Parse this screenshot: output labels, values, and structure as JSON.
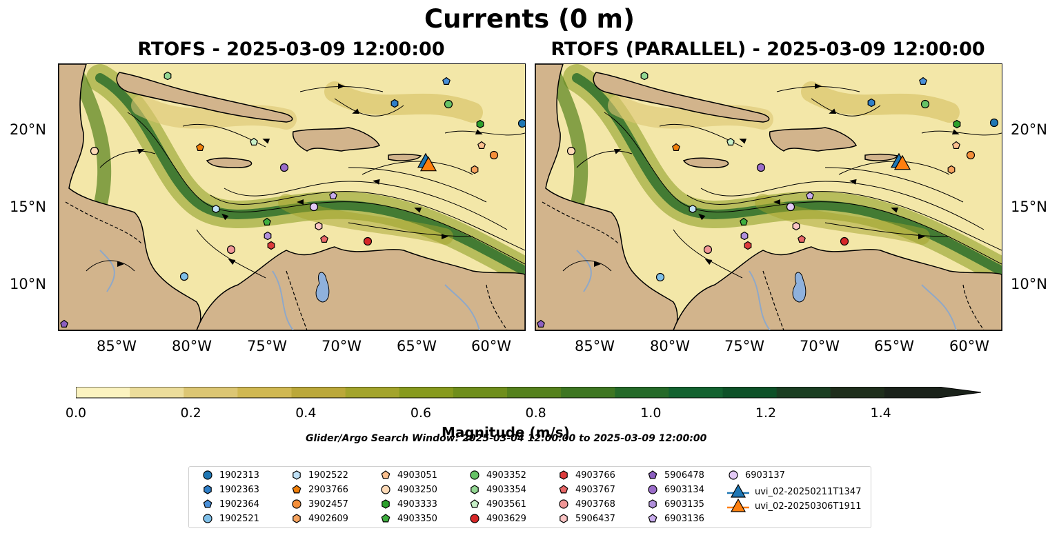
{
  "figure": {
    "suptitle": "Currents (0 m)",
    "panels": [
      {
        "title": "RTOFS - 2025-03-09 12:00:00"
      },
      {
        "title": "RTOFS (PARALLEL) - 2025-03-09 12:00:00"
      }
    ],
    "lon_ticks": [
      "85°W",
      "80°W",
      "75°W",
      "70°W",
      "65°W",
      "60°W"
    ],
    "lat_ticks": [
      "20°N",
      "15°N",
      "10°N"
    ],
    "colors": {
      "land": "#d2b48c",
      "lake": "#8fb1dc",
      "river": "#8fa8c8",
      "stream": "#000000"
    }
  },
  "colorbar": {
    "label": "Magnitude (m/s)",
    "ticks": [
      "0.0",
      "0.2",
      "0.4",
      "0.6",
      "0.8",
      "1.0",
      "1.2",
      "1.4"
    ],
    "colors": [
      "#fbf3c0",
      "#ecdd9b",
      "#dcc673",
      "#d0b852",
      "#bba83a",
      "#a3a42c",
      "#879a1e",
      "#6f8e1c",
      "#55811d",
      "#3e7622",
      "#256a29",
      "#136230",
      "#0d5128",
      "#1a3e22",
      "#1f2e1c",
      "#1a221a"
    ]
  },
  "search_window": "Glider/Argo Search Window: 2025-03-04 12:00:00 to 2025-03-09 12:00:00",
  "legend": [
    {
      "id": "1902313",
      "marker": "circle",
      "color": "#1f77b4"
    },
    {
      "id": "1902363",
      "marker": "hexagon",
      "color": "#2f7fc8"
    },
    {
      "id": "1902364",
      "marker": "pentagon",
      "color": "#4a90d9"
    },
    {
      "id": "1902521",
      "marker": "circle",
      "color": "#7fbfe8"
    },
    {
      "id": "1902522",
      "marker": "hexagon",
      "color": "#bfe1f7"
    },
    {
      "id": "2903766",
      "marker": "pentagon",
      "color": "#f07f0a"
    },
    {
      "id": "3902457",
      "marker": "circle",
      "color": "#f58f3a"
    },
    {
      "id": "4902609",
      "marker": "hexagon",
      "color": "#f6a35e"
    },
    {
      "id": "4903051",
      "marker": "pentagon",
      "color": "#fbc08f"
    },
    {
      "id": "4903250",
      "marker": "circle",
      "color": "#fdd9b6"
    },
    {
      "id": "4903333",
      "marker": "hexagon",
      "color": "#2ca02c"
    },
    {
      "id": "4903350",
      "marker": "pentagon",
      "color": "#3fae3f"
    },
    {
      "id": "4903352",
      "marker": "circle",
      "color": "#66c266"
    },
    {
      "id": "4903354",
      "marker": "hexagon",
      "color": "#93d793"
    },
    {
      "id": "4903561",
      "marker": "pentagon",
      "color": "#c7efc7"
    },
    {
      "id": "4903629",
      "marker": "circle",
      "color": "#d62728"
    },
    {
      "id": "4903766",
      "marker": "hexagon",
      "color": "#dc3b3c"
    },
    {
      "id": "4903767",
      "marker": "pentagon",
      "color": "#e86767"
    },
    {
      "id": "4903768",
      "marker": "circle",
      "color": "#f09696"
    },
    {
      "id": "5906437",
      "marker": "hexagon",
      "color": "#fbc4c4"
    },
    {
      "id": "5906478",
      "marker": "pentagon",
      "color": "#8c5fc0"
    },
    {
      "id": "6903134",
      "marker": "circle",
      "color": "#9a6cc9"
    },
    {
      "id": "6903135",
      "marker": "hexagon",
      "color": "#b08fdb"
    },
    {
      "id": "6903136",
      "marker": "pentagon",
      "color": "#c8acec"
    },
    {
      "id": "6903137",
      "marker": "circle",
      "color": "#e3c9f5"
    },
    {
      "id": "uvi_02-20250211T1347",
      "marker": "triangle-line",
      "color": "#1f77b4"
    },
    {
      "id": "uvi_02-20250306T1911",
      "marker": "triangle-line",
      "color": "#ff7f0e"
    }
  ]
}
